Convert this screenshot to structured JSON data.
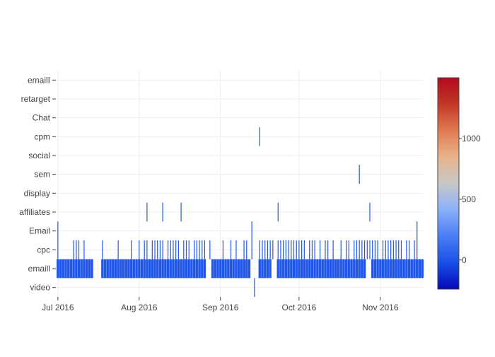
{
  "chart_data": {
    "type": "heatmap",
    "title": "",
    "xlabel": "",
    "ylabel": "",
    "categories": [
      "video",
      "emaill",
      "cpc",
      "Email",
      "affiliates",
      "display",
      "sem",
      "social",
      "cpm",
      "Chat",
      "retarget",
      "emailI"
    ],
    "x_ticks": [
      "Jul 2016",
      "Aug 2016",
      "Sep 2016",
      "Oct 2016",
      "Nov 2016"
    ],
    "xlim": [
      "2016-07-01",
      "2016-11-17"
    ],
    "colorscale": {
      "stops": [
        "#0508b8",
        "#1950e6",
        "#4a7df5",
        "#8ab0fa",
        "#c8c8c8",
        "#e8b48c",
        "#e07b53",
        "#c23727",
        "#b10b1e"
      ],
      "range": [
        -240,
        1500
      ],
      "ticks": [
        0,
        500,
        1000
      ]
    },
    "emaill_gaps": [
      [
        "2016-07-15",
        "2016-07-17"
      ],
      [
        "2016-08-27",
        "2016-08-28"
      ],
      [
        "2016-09-13",
        "2016-09-15"
      ],
      [
        "2016-09-21",
        "2016-09-22"
      ],
      [
        "2016-10-27",
        "2016-10-28"
      ]
    ],
    "cpc_dates": [
      "2016-07-01",
      "2016-07-07",
      "2016-07-08",
      "2016-07-09",
      "2016-07-11",
      "2016-07-18",
      "2016-07-24",
      "2016-07-29",
      "2016-08-01",
      "2016-08-03",
      "2016-08-04",
      "2016-08-06",
      "2016-08-07",
      "2016-08-08",
      "2016-08-09",
      "2016-08-10",
      "2016-08-12",
      "2016-08-13",
      "2016-08-14",
      "2016-08-15",
      "2016-08-16",
      "2016-08-18",
      "2016-08-19",
      "2016-08-20",
      "2016-08-22",
      "2016-08-23",
      "2016-08-24",
      "2016-08-25",
      "2016-08-26",
      "2016-08-28",
      "2016-09-02",
      "2016-09-05",
      "2016-09-07",
      "2016-09-10",
      "2016-09-11",
      "2016-09-13",
      "2016-09-16",
      "2016-09-17",
      "2016-09-18",
      "2016-09-19",
      "2016-09-20",
      "2016-09-21",
      "2016-09-23",
      "2016-09-24",
      "2016-09-25",
      "2016-09-26",
      "2016-09-27",
      "2016-09-28",
      "2016-09-29",
      "2016-09-30",
      "2016-10-01",
      "2016-10-02",
      "2016-10-03",
      "2016-10-05",
      "2016-10-06",
      "2016-10-07",
      "2016-10-09",
      "2016-10-11",
      "2016-10-12",
      "2016-10-14",
      "2016-10-17",
      "2016-10-19",
      "2016-10-20",
      "2016-10-22",
      "2016-10-23",
      "2016-10-24",
      "2016-10-25",
      "2016-10-26",
      "2016-10-27",
      "2016-10-28",
      "2016-10-29",
      "2016-10-30",
      "2016-10-31",
      "2016-11-02",
      "2016-11-03",
      "2016-11-04",
      "2016-11-05",
      "2016-11-06",
      "2016-11-07",
      "2016-11-08",
      "2016-11-09",
      "2016-11-11",
      "2016-11-12",
      "2016-11-14",
      "2016-11-15"
    ],
    "points": [
      {
        "category": "video",
        "date": "2016-09-14",
        "value": 10
      },
      {
        "category": "Email",
        "date": "2016-07-01",
        "value": 10
      },
      {
        "category": "Email",
        "date": "2016-09-13",
        "value": 10
      },
      {
        "category": "Email",
        "date": "2016-11-15",
        "value": 10
      },
      {
        "category": "affiliates",
        "date": "2016-08-04",
        "value": 10
      },
      {
        "category": "affiliates",
        "date": "2016-08-10",
        "value": 10
      },
      {
        "category": "affiliates",
        "date": "2016-08-17",
        "value": 10
      },
      {
        "category": "affiliates",
        "date": "2016-09-23",
        "value": 10
      },
      {
        "category": "affiliates",
        "date": "2016-10-28",
        "value": 10
      },
      {
        "category": "sem",
        "date": "2016-10-24",
        "value": 10
      },
      {
        "category": "cpm",
        "date": "2016-09-16",
        "value": 10
      }
    ],
    "cell_value": 10,
    "grid": true
  }
}
